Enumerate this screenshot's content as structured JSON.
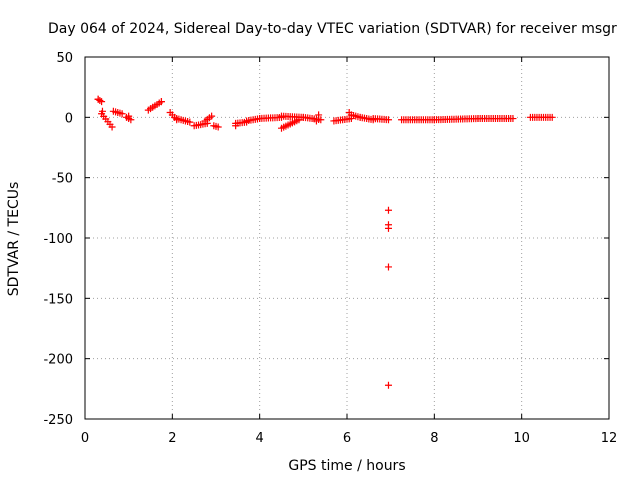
{
  "chart_data": {
    "type": "scatter",
    "title": "Day 064 of 2024, Sidereal Day-to-day VTEC variation (SDTVAR) for receiver msgr",
    "xlabel": "GPS time / hours",
    "ylabel": "SDTVAR / TECUs",
    "xlim": [
      0,
      12
    ],
    "ylim": [
      -250,
      50
    ],
    "xticks": [
      0,
      2,
      4,
      6,
      8,
      10,
      12
    ],
    "yticks": [
      -250,
      -200,
      -150,
      -100,
      -50,
      0,
      50
    ],
    "grid": true,
    "marker": "+",
    "color": "#ff0000",
    "segments": [
      {
        "x": [
          0.3,
          0.38
        ],
        "y": [
          15,
          13
        ]
      },
      {
        "x": [
          0.38,
          0.62
        ],
        "y": [
          3,
          -8
        ]
      },
      {
        "x": [
          0.65,
          0.85
        ],
        "y": [
          5,
          3
        ]
      },
      {
        "x": [
          0.95,
          1.05
        ],
        "y": [
          0,
          -2
        ]
      },
      {
        "x": [
          1.45,
          1.75
        ],
        "y": [
          6,
          13
        ]
      },
      {
        "x": [
          1.95,
          2.1
        ],
        "y": [
          4,
          -2
        ]
      },
      {
        "x": [
          2.1,
          2.4
        ],
        "y": [
          -1,
          -4
        ]
      },
      {
        "x": [
          2.5,
          2.8
        ],
        "y": [
          -7,
          -5
        ]
      },
      {
        "x": [
          2.75,
          2.9
        ],
        "y": [
          -3,
          1
        ]
      },
      {
        "x": [
          2.95,
          3.05
        ],
        "y": [
          -7,
          -8
        ]
      },
      {
        "x": [
          3.45,
          3.7
        ],
        "y": [
          -5,
          -4
        ]
      },
      {
        "x": [
          3.7,
          4.0
        ],
        "y": [
          -3,
          -1
        ]
      },
      {
        "x": [
          4.0,
          4.5
        ],
        "y": [
          -1,
          0
        ]
      },
      {
        "x": [
          4.5,
          4.9
        ],
        "y": [
          -9,
          -2
        ]
      },
      {
        "x": [
          4.5,
          5.0
        ],
        "y": [
          1,
          0
        ]
      },
      {
        "x": [
          5.0,
          5.4
        ],
        "y": [
          0,
          -2
        ]
      },
      {
        "x": [
          5.7,
          6.1
        ],
        "y": [
          -3,
          -1
        ]
      },
      {
        "x": [
          6.1,
          6.3
        ],
        "y": [
          2,
          0
        ]
      },
      {
        "x": [
          6.3,
          6.6
        ],
        "y": [
          0,
          -2
        ]
      },
      {
        "x": [
          6.6,
          6.95
        ],
        "y": [
          -1,
          -2
        ]
      },
      {
        "x": [
          7.25,
          8.0
        ],
        "y": [
          -2,
          -2
        ]
      },
      {
        "x": [
          8.0,
          9.0
        ],
        "y": [
          -2,
          -1
        ]
      },
      {
        "x": [
          9.0,
          9.8
        ],
        "y": [
          -1,
          -1
        ]
      },
      {
        "x": [
          10.2,
          10.7
        ],
        "y": [
          0,
          0
        ]
      }
    ],
    "points": [
      {
        "x": 0.3,
        "y": 15
      },
      {
        "x": 0.4,
        "y": 5
      },
      {
        "x": 1.0,
        "y": 1
      },
      {
        "x": 1.75,
        "y": 13
      },
      {
        "x": 3.45,
        "y": -7
      },
      {
        "x": 5.3,
        "y": -3
      },
      {
        "x": 5.35,
        "y": 2
      },
      {
        "x": 6.05,
        "y": 4
      },
      {
        "x": 6.95,
        "y": -77
      },
      {
        "x": 6.95,
        "y": -89
      },
      {
        "x": 6.95,
        "y": -92
      },
      {
        "x": 6.95,
        "y": -124
      },
      {
        "x": 6.95,
        "y": -222
      }
    ]
  }
}
